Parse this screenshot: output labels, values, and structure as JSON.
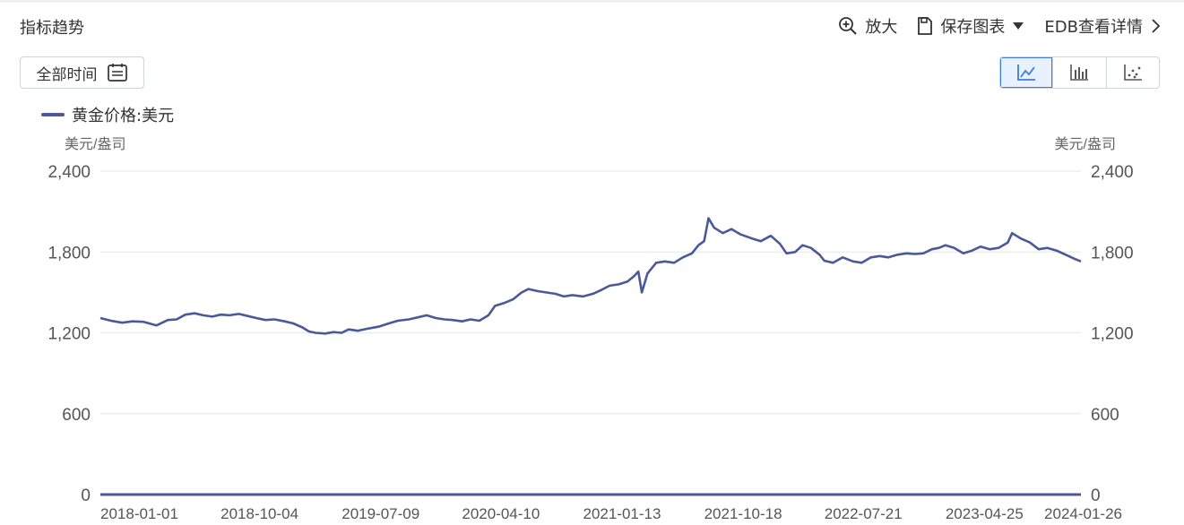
{
  "header": {
    "title": "指标趋势"
  },
  "toolbar": {
    "zoom_label": "放大",
    "save_label": "保存图表",
    "edb_label": "EDB查看详情"
  },
  "controls": {
    "range_label": "全部时间",
    "chart_type_active": "line",
    "chart_type_options": [
      "line",
      "bar",
      "scatter"
    ]
  },
  "colors": {
    "series": "#4a5a99",
    "grid": "#e8ebf3",
    "active": "#3b7ce6"
  },
  "chart_data": {
    "type": "line",
    "title": "",
    "legend": [
      "黄金价格:美元"
    ],
    "legend_position": "top-left",
    "ylabel_left": "美元/盎司",
    "ylabel_right": "美元/盎司",
    "ylim": [
      0,
      2400
    ],
    "yticks": [
      0,
      600,
      1200,
      1800,
      2400
    ],
    "ytick_labels": [
      "0",
      "600",
      "1,200",
      "1,800",
      "2,400"
    ],
    "xlim": [
      "2018-01-01",
      "2024-03-01"
    ],
    "xticks": [
      "2018-01-01",
      "2018-10-04",
      "2019-07-09",
      "2020-04-10",
      "2021-01-13",
      "2021-10-18",
      "2022-07-21",
      "2023-04-25",
      "2024-01-26"
    ],
    "grid": true,
    "series": [
      {
        "name": "黄金价格:美元",
        "points": [
          [
            "2018-01-01",
            1310
          ],
          [
            "2018-01-25",
            1290
          ],
          [
            "2018-02-20",
            1275
          ],
          [
            "2018-03-15",
            1285
          ],
          [
            "2018-04-10",
            1282
          ],
          [
            "2018-05-10",
            1255
          ],
          [
            "2018-06-05",
            1295
          ],
          [
            "2018-06-25",
            1300
          ],
          [
            "2018-07-15",
            1335
          ],
          [
            "2018-08-05",
            1345
          ],
          [
            "2018-08-25",
            1330
          ],
          [
            "2018-09-15",
            1320
          ],
          [
            "2018-10-04",
            1335
          ],
          [
            "2018-10-25",
            1330
          ],
          [
            "2018-11-15",
            1340
          ],
          [
            "2018-12-05",
            1325
          ],
          [
            "2018-12-25",
            1310
          ],
          [
            "2019-01-15",
            1295
          ],
          [
            "2019-02-05",
            1300
          ],
          [
            "2019-02-28",
            1285
          ],
          [
            "2019-03-20",
            1270
          ],
          [
            "2019-04-10",
            1240
          ],
          [
            "2019-04-25",
            1210
          ],
          [
            "2019-05-10",
            1200
          ],
          [
            "2019-06-01",
            1195
          ],
          [
            "2019-06-20",
            1205
          ],
          [
            "2019-07-09",
            1200
          ],
          [
            "2019-07-25",
            1225
          ],
          [
            "2019-08-15",
            1215
          ],
          [
            "2019-09-05",
            1230
          ],
          [
            "2019-10-01",
            1245
          ],
          [
            "2019-10-25",
            1270
          ],
          [
            "2019-11-15",
            1290
          ],
          [
            "2019-12-10",
            1300
          ],
          [
            "2019-12-31",
            1315
          ],
          [
            "2020-01-20",
            1330
          ],
          [
            "2020-02-10",
            1310
          ],
          [
            "2020-03-01",
            1300
          ],
          [
            "2020-03-20",
            1295
          ],
          [
            "2020-04-10",
            1285
          ],
          [
            "2020-04-30",
            1300
          ],
          [
            "2020-05-20",
            1290
          ],
          [
            "2020-06-10",
            1330
          ],
          [
            "2020-06-25",
            1400
          ],
          [
            "2020-07-15",
            1420
          ],
          [
            "2020-08-06",
            1450
          ],
          [
            "2020-08-25",
            1500
          ],
          [
            "2020-09-10",
            1525
          ],
          [
            "2020-09-30",
            1510
          ],
          [
            "2020-10-20",
            1500
          ],
          [
            "2020-11-10",
            1490
          ],
          [
            "2020-11-30",
            1470
          ],
          [
            "2020-12-20",
            1480
          ],
          [
            "2021-01-13",
            1470
          ],
          [
            "2021-02-05",
            1490
          ],
          [
            "2021-02-25",
            1520
          ],
          [
            "2021-03-15",
            1550
          ],
          [
            "2021-04-05",
            1560
          ],
          [
            "2021-04-25",
            1580
          ],
          [
            "2021-05-10",
            1620
          ],
          [
            "2021-05-20",
            1655
          ],
          [
            "2021-05-28",
            1500
          ],
          [
            "2021-06-10",
            1640
          ],
          [
            "2021-06-30",
            1720
          ],
          [
            "2021-07-20",
            1730
          ],
          [
            "2021-08-10",
            1720
          ],
          [
            "2021-08-30",
            1760
          ],
          [
            "2021-09-20",
            1790
          ],
          [
            "2021-10-05",
            1850
          ],
          [
            "2021-10-18",
            1880
          ],
          [
            "2021-10-28",
            2050
          ],
          [
            "2021-11-10",
            1980
          ],
          [
            "2021-11-30",
            1940
          ],
          [
            "2021-12-20",
            1970
          ],
          [
            "2022-01-10",
            1930
          ],
          [
            "2022-02-05",
            1900
          ],
          [
            "2022-02-25",
            1880
          ],
          [
            "2022-03-20",
            1920
          ],
          [
            "2022-04-10",
            1860
          ],
          [
            "2022-04-25",
            1790
          ],
          [
            "2022-05-15",
            1800
          ],
          [
            "2022-06-01",
            1850
          ],
          [
            "2022-06-20",
            1830
          ],
          [
            "2022-07-10",
            1780
          ],
          [
            "2022-07-21",
            1735
          ],
          [
            "2022-08-10",
            1720
          ],
          [
            "2022-09-01",
            1760
          ],
          [
            "2022-09-25",
            1730
          ],
          [
            "2022-10-15",
            1720
          ],
          [
            "2022-11-05",
            1760
          ],
          [
            "2022-11-25",
            1770
          ],
          [
            "2022-12-15",
            1760
          ],
          [
            "2023-01-05",
            1780
          ],
          [
            "2023-01-25",
            1790
          ],
          [
            "2023-02-15",
            1785
          ],
          [
            "2023-03-05",
            1790
          ],
          [
            "2023-03-25",
            1820
          ],
          [
            "2023-04-10",
            1830
          ],
          [
            "2023-04-25",
            1850
          ],
          [
            "2023-05-15",
            1830
          ],
          [
            "2023-06-05",
            1790
          ],
          [
            "2023-06-25",
            1810
          ],
          [
            "2023-07-15",
            1840
          ],
          [
            "2023-08-05",
            1820
          ],
          [
            "2023-08-25",
            1830
          ],
          [
            "2023-09-15",
            1870
          ],
          [
            "2023-09-25",
            1940
          ],
          [
            "2023-10-15",
            1900
          ],
          [
            "2023-11-05",
            1870
          ],
          [
            "2023-11-25",
            1820
          ],
          [
            "2023-12-15",
            1830
          ],
          [
            "2024-01-05",
            1810
          ],
          [
            "2024-01-26",
            1780
          ],
          [
            "2024-02-15",
            1750
          ],
          [
            "2024-03-01",
            1730
          ]
        ]
      }
    ]
  }
}
